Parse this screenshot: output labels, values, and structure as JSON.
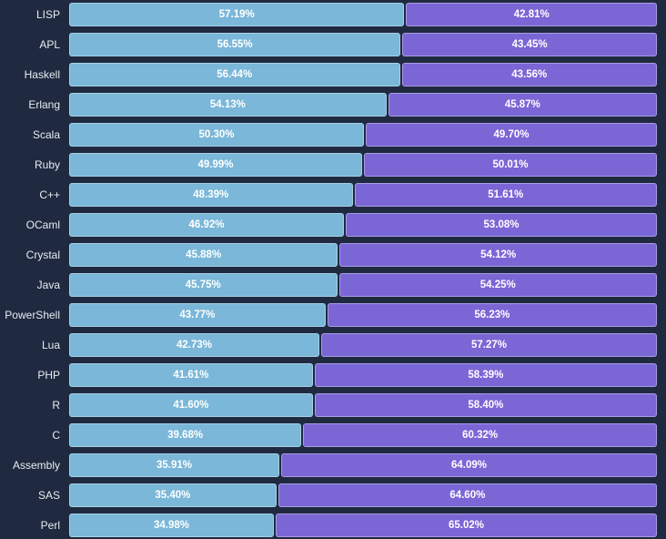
{
  "chart_data": {
    "type": "bar",
    "orientation": "horizontal",
    "stacked": true,
    "normalized": true,
    "categories": [
      "LISP",
      "APL",
      "Haskell",
      "Erlang",
      "Scala",
      "Ruby",
      "C++",
      "OCaml",
      "Crystal",
      "Java",
      "PowerShell",
      "Lua",
      "PHP",
      "R",
      "C",
      "Assembly",
      "SAS",
      "Perl"
    ],
    "series": [
      {
        "color": "#7ab7d8",
        "values": [
          57.19,
          56.55,
          56.44,
          54.13,
          50.3,
          49.99,
          48.39,
          46.92,
          45.88,
          45.75,
          43.77,
          42.73,
          41.61,
          41.6,
          39.68,
          35.91,
          35.4,
          34.98
        ],
        "labels": [
          "57.19%",
          "56.55%",
          "56.44%",
          "54.13%",
          "50.30%",
          "49.99%",
          "48.39%",
          "46.92%",
          "45.88%",
          "45.75%",
          "43.77%",
          "42.73%",
          "41.61%",
          "41.60%",
          "39.68%",
          "35.91%",
          "35.40%",
          "34.98%"
        ]
      },
      {
        "color": "#7b66d6",
        "values": [
          42.81,
          43.45,
          43.56,
          45.87,
          49.7,
          50.01,
          51.61,
          53.08,
          54.12,
          54.25,
          56.23,
          57.27,
          58.39,
          58.4,
          60.32,
          64.09,
          64.6,
          65.02
        ],
        "labels": [
          "42.81%",
          "43.45%",
          "43.56%",
          "45.87%",
          "49.70%",
          "50.01%",
          "51.61%",
          "53.08%",
          "54.12%",
          "54.25%",
          "56.23%",
          "57.27%",
          "58.39%",
          "58.40%",
          "60.32%",
          "64.09%",
          "64.60%",
          "65.02%"
        ]
      }
    ],
    "xlim": [
      0,
      100
    ],
    "grid": false,
    "legend": "none"
  }
}
